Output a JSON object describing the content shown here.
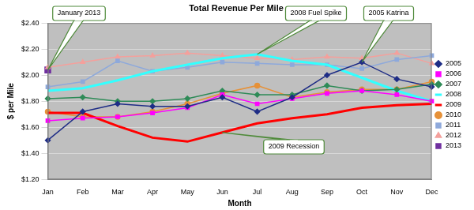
{
  "chart_data": {
    "type": "line",
    "title": "Total Revenue Per Mile",
    "x_label": "Month",
    "y_label": "$ per Mile",
    "categories": [
      "Jan",
      "Feb",
      "Mar",
      "Apr",
      "May",
      "Jun",
      "Jul",
      "Aug",
      "Sep",
      "Oct",
      "Nov",
      "Dec"
    ],
    "ylim": [
      1.2,
      2.4
    ],
    "yticks": [
      {
        "value": 1.2,
        "label": "$1.20"
      },
      {
        "value": 1.4,
        "label": "$1.40"
      },
      {
        "value": 1.6,
        "label": "$1.60"
      },
      {
        "value": 1.8,
        "label": "$1.80"
      },
      {
        "value": 2.0,
        "label": "$2.00"
      },
      {
        "value": 2.2,
        "label": "$2.20"
      },
      {
        "value": 2.4,
        "label": "$2.40"
      }
    ],
    "grid": true,
    "legend": "right",
    "series": [
      {
        "name": "2005",
        "color": "#1f2d86",
        "marker": "diamond",
        "line_style": "thin",
        "values": [
          1.5,
          1.72,
          1.78,
          1.76,
          1.76,
          1.83,
          1.72,
          1.83,
          2.0,
          2.1,
          1.97,
          1.91
        ]
      },
      {
        "name": "2006",
        "color": "#ff00ff",
        "marker": "square",
        "line_style": "thin",
        "values": [
          1.65,
          1.67,
          1.68,
          1.71,
          1.75,
          1.85,
          1.78,
          1.82,
          1.86,
          1.88,
          1.85,
          1.8
        ]
      },
      {
        "name": "2007",
        "color": "#2e8b57",
        "marker": "diamond",
        "line_style": "thin",
        "values": [
          1.82,
          1.83,
          1.8,
          1.8,
          1.82,
          1.88,
          1.85,
          1.85,
          1.92,
          1.88,
          1.89,
          1.93
        ]
      },
      {
        "name": "2008",
        "color": "#33ffff",
        "marker": "none",
        "line_style": "thick",
        "values": [
          1.88,
          1.9,
          1.96,
          2.03,
          2.08,
          2.13,
          2.16,
          2.11,
          2.08,
          1.98,
          1.88,
          1.8
        ]
      },
      {
        "name": "2009",
        "color": "#ff0000",
        "marker": "none",
        "line_style": "thick",
        "values": [
          1.71,
          1.71,
          1.61,
          1.52,
          1.49,
          1.56,
          1.63,
          1.67,
          1.7,
          1.75,
          1.77,
          1.78
        ]
      },
      {
        "name": "2010",
        "color": "#e69138",
        "marker": "circle",
        "line_style": "thin",
        "values": [
          1.72,
          1.68,
          1.68,
          1.72,
          1.78,
          1.86,
          1.92,
          1.83,
          1.87,
          1.89,
          1.89,
          1.95
        ]
      },
      {
        "name": "2011",
        "color": "#8ea9db",
        "marker": "square",
        "line_style": "thin",
        "values": [
          1.91,
          1.95,
          2.11,
          2.03,
          2.06,
          2.1,
          2.09,
          2.08,
          2.08,
          2.05,
          2.12,
          2.15
        ]
      },
      {
        "name": "2012",
        "color": "#f4a09c",
        "marker": "triangle",
        "line_style": "thin",
        "values": [
          2.06,
          2.1,
          2.14,
          2.15,
          2.17,
          2.15,
          2.13,
          2.12,
          2.14,
          2.13,
          2.17,
          2.09
        ]
      },
      {
        "name": "2013",
        "color": "#7030a0",
        "marker": "square",
        "line_style": "thin",
        "values": [
          2.04,
          null,
          null,
          null,
          null,
          null,
          null,
          null,
          null,
          null,
          null,
          null
        ]
      }
    ],
    "annotations": [
      {
        "text": "January 2013",
        "series": "2013",
        "category": "Jan"
      },
      {
        "text": "2008 Fuel Spike",
        "series": "2008",
        "category": "Jul"
      },
      {
        "text": "2005 Katrina",
        "series": "2005",
        "category": "Oct"
      },
      {
        "text": "2009 Recession",
        "series": "2009",
        "category": "Jun"
      }
    ]
  }
}
